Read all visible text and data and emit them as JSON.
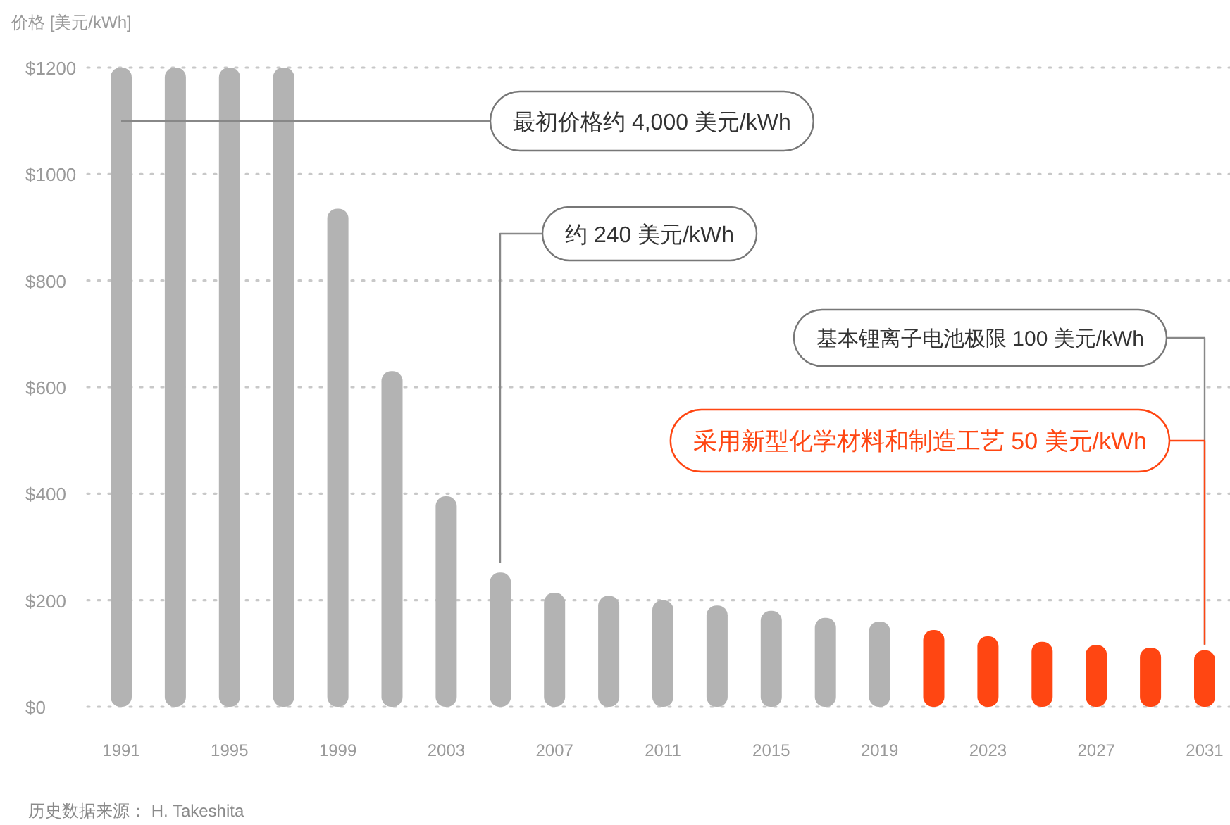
{
  "chart_data": {
    "type": "bar",
    "ylabel": "价格 [美元/kWh]",
    "categories": [
      "1991",
      null,
      "1995",
      null,
      "1999",
      null,
      "2003",
      null,
      "2007",
      null,
      "2011",
      null,
      "2015",
      null,
      "2019",
      null,
      "2023",
      null,
      "2027",
      null,
      "2031"
    ],
    "values": [
      1200,
      1200,
      1200,
      1200,
      935,
      630,
      395,
      252,
      214,
      208,
      200,
      190,
      180,
      167,
      160,
      144,
      132,
      122,
      116,
      111,
      106
    ],
    "colors": [
      "#b3b3b3",
      "#b3b3b3",
      "#b3b3b3",
      "#b3b3b3",
      "#b3b3b3",
      "#b3b3b3",
      "#b3b3b3",
      "#b3b3b3",
      "#b3b3b3",
      "#b3b3b3",
      "#b3b3b3",
      "#b3b3b3",
      "#b3b3b3",
      "#b3b3b3",
      "#b3b3b3",
      "#ff4612",
      "#ff4612",
      "#ff4612",
      "#ff4612",
      "#ff4612",
      "#ff4612"
    ],
    "ylim": [
      0,
      1200
    ],
    "yticks": [
      {
        "value": 0,
        "label": "$0"
      },
      {
        "value": 200,
        "label": "$200"
      },
      {
        "value": 400,
        "label": "$400"
      },
      {
        "value": 600,
        "label": "$600"
      },
      {
        "value": 800,
        "label": "$800"
      },
      {
        "value": 1000,
        "label": "$1000"
      },
      {
        "value": 1200,
        "label": "$1200"
      }
    ],
    "grid": "y",
    "annotations": [
      "最初价格约 4,000 美元/kWh",
      "约 240 美元/kWh",
      {
        "text": "基本锂离子电池极限 100 美元/kWh",
        "x": "2031",
        "y": 106
      },
      {
        "text": "采用新型化学材料和制造工艺 50 美元/kWh",
        "x": "2031",
        "y": 106
      },
      "历史数据来源： H. Takeshita"
    ]
  }
}
